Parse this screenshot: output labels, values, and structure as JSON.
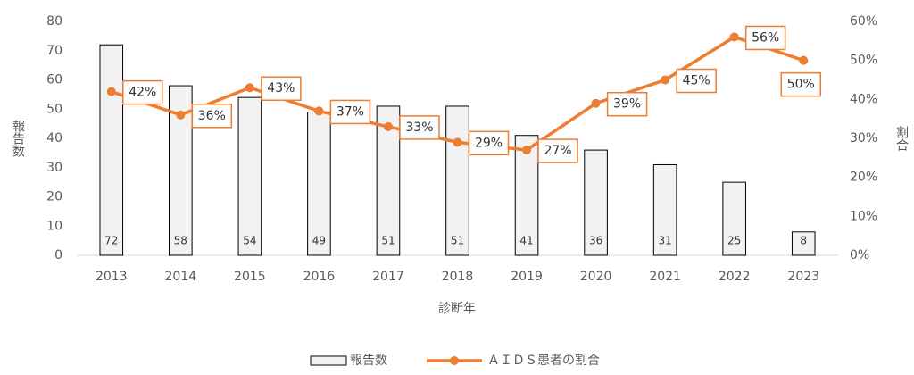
{
  "chart_data": {
    "type": "bar_line",
    "x_label": "診断年",
    "y_label": "報告数",
    "y2_label": "割合",
    "categories": [
      "2013",
      "2014",
      "2015",
      "2016",
      "2017",
      "2018",
      "2019",
      "2020",
      "2021",
      "2022",
      "2023"
    ],
    "series": [
      {
        "name": "報告数",
        "type": "bar",
        "color": "#f2f2f2",
        "values": [
          72,
          58,
          54,
          49,
          51,
          51,
          41,
          36,
          31,
          25,
          8
        ]
      },
      {
        "name": "ＡＩＤＳ患者の割合",
        "type": "line",
        "axis": "y2",
        "color": "#ed7d31",
        "values": [
          42,
          36,
          43,
          37,
          33,
          29,
          27,
          39,
          45,
          56,
          50
        ],
        "value_labels": [
          "42%",
          "36%",
          "43%",
          "37%",
          "33%",
          "29%",
          "27%",
          "39%",
          "45%",
          "56%",
          "50%"
        ]
      }
    ],
    "ylim": [
      0,
      80
    ],
    "yticks": [
      0,
      10,
      20,
      30,
      40,
      50,
      60,
      70,
      80
    ],
    "y2lim": [
      0,
      60
    ],
    "y2ticks": [
      {
        "value": 0,
        "label": "0%"
      },
      {
        "value": 10,
        "label": "10%"
      },
      {
        "value": 20,
        "label": "20%"
      },
      {
        "value": 30,
        "label": "30%"
      },
      {
        "value": 40,
        "label": "40%"
      },
      {
        "value": 50,
        "label": "50%"
      },
      {
        "value": 60,
        "label": "60%"
      }
    ],
    "legend": "bottom"
  }
}
